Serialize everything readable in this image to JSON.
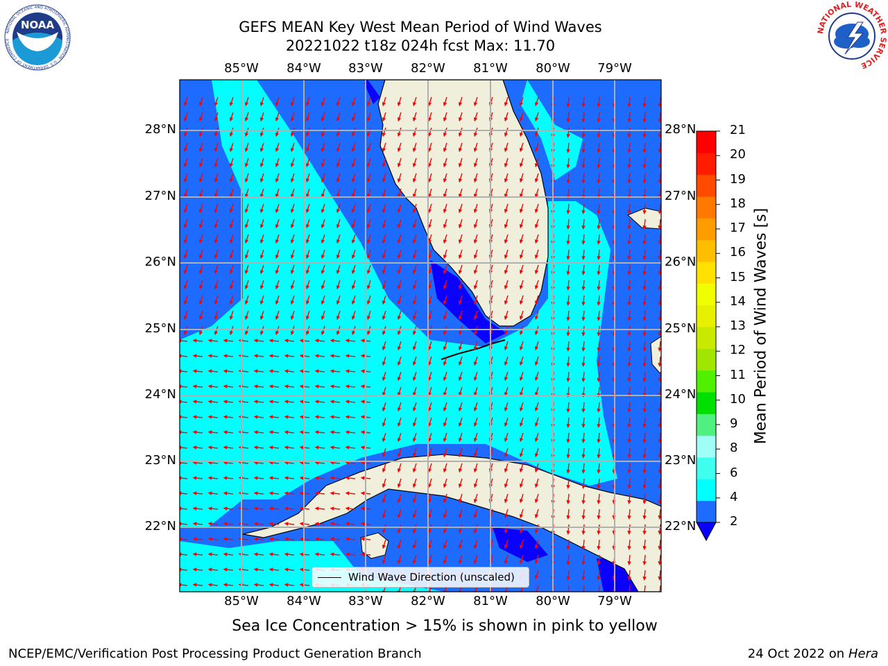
{
  "title": {
    "line1": "GEFS MEAN Key West Mean Period of Wind Waves",
    "line2": "20221022 t18z 024h fcst   Max: 11.70"
  },
  "map": {
    "longitude_labels": [
      "85°W",
      "84°W",
      "83°W",
      "82°W",
      "81°W",
      "80°W",
      "79°W"
    ],
    "latitude_labels": [
      "28°N",
      "27°N",
      "26°N",
      "25°N",
      "24°N",
      "23°N",
      "22°N"
    ],
    "land_color": "#efefdc",
    "grid_color": "#b0b0b0",
    "arrow_color": "#ff0000",
    "legend_label": "Wind Wave Direction (unscaled)"
  },
  "colorbar": {
    "title": "Mean Period of Wind Waves [s]",
    "ticks": [
      "2",
      "4",
      "6",
      "8",
      "9",
      "10",
      "11",
      "12",
      "13",
      "14",
      "15",
      "16",
      "17",
      "18",
      "19",
      "20",
      "21"
    ],
    "colors": [
      "#1e6cff",
      "#00ffff",
      "#3fffee",
      "#a0fff6",
      "#50f080",
      "#00e000",
      "#50f000",
      "#a0e600",
      "#c8ea00",
      "#e6f000",
      "#f0ff00",
      "#ffe000",
      "#ffbf00",
      "#ff9c00",
      "#ff7800",
      "#ff4a00",
      "#ff1c00",
      "#ff0000"
    ],
    "under_color": "#0a00ff"
  },
  "footnote": "Sea Ice Concentration > 15% is shown in pink to yellow",
  "footer": {
    "left": "NCEP/EMC/Verification Post Processing Product Generation Branch",
    "right_date": "24 Oct 2022 on",
    "right_machine": "Hera"
  },
  "logos": {
    "noaa_text": "NOAA",
    "noaa_ring": "NATIONAL OCEANIC AND ATMOSPHERIC ADMINISTRATION · U.S. DEPARTMENT OF COMMERCE",
    "nws_ring": "NATIONAL WEATHER SERVICE"
  }
}
